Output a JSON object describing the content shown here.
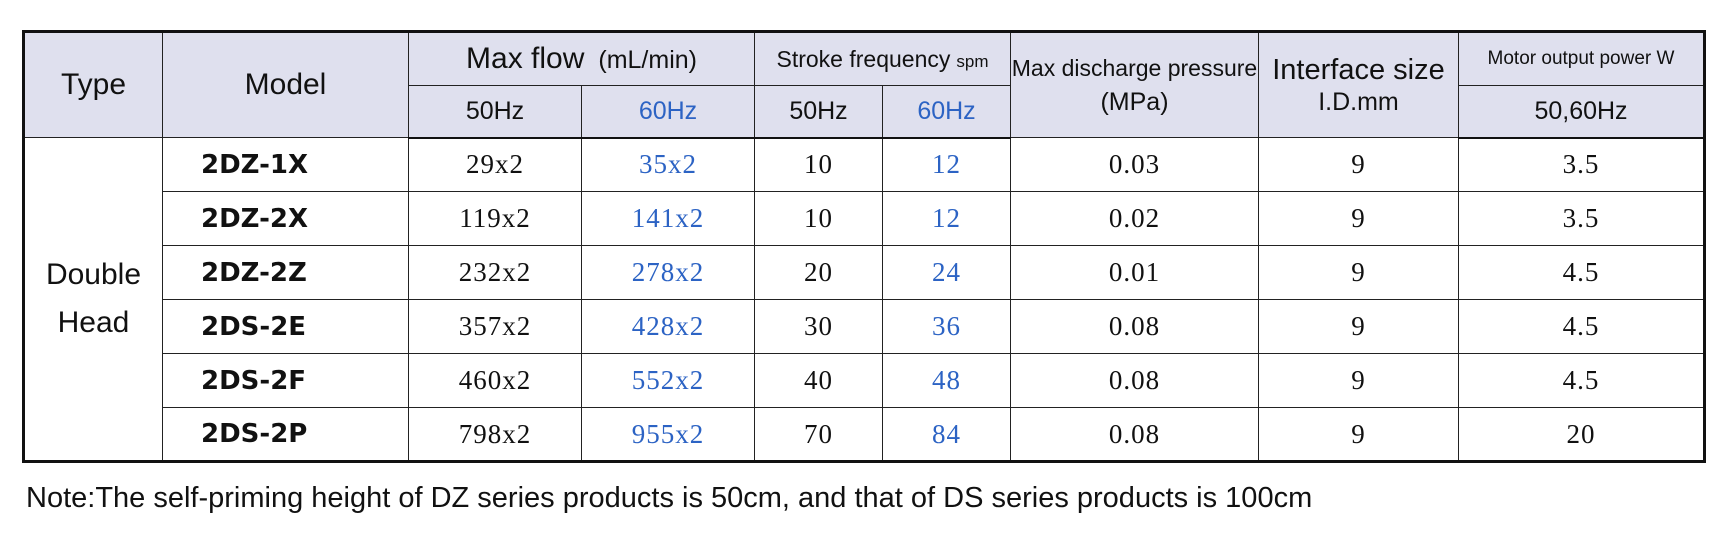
{
  "header": {
    "type": "Type",
    "model": "Model",
    "max_flow": "Max flow",
    "max_flow_unit": "(mL/min)",
    "stroke_frequency": "Stroke frequency",
    "stroke_frequency_unit": "spm",
    "max_discharge_pressure": "Max discharge pressure",
    "max_discharge_pressure_unit": "(MPa)",
    "interface_size": "Interface size",
    "interface_size_unit": "I.D.mm",
    "motor_output_power": "Motor output power  W",
    "flow_50hz": "50Hz",
    "flow_60hz": "60Hz",
    "stroke_50hz": "50Hz",
    "stroke_60hz": "60Hz",
    "motor_hz": "50,60Hz"
  },
  "type_group": {
    "line1": "Double",
    "line2": "Head"
  },
  "rows": [
    {
      "model": "2DZ-1X",
      "flow50": "29x2",
      "flow60": "35x2",
      "stroke50": "10",
      "stroke60": "12",
      "pressure": "0.03",
      "interface": "9",
      "power": "3.5"
    },
    {
      "model": "2DZ-2X",
      "flow50": "119x2",
      "flow60": "141x2",
      "stroke50": "10",
      "stroke60": "12",
      "pressure": "0.02",
      "interface": "9",
      "power": "3.5"
    },
    {
      "model": "2DZ-2Z",
      "flow50": "232x2",
      "flow60": "278x2",
      "stroke50": "20",
      "stroke60": "24",
      "pressure": "0.01",
      "interface": "9",
      "power": "4.5"
    },
    {
      "model": "2DS-2E",
      "flow50": "357x2",
      "flow60": "428x2",
      "stroke50": "30",
      "stroke60": "36",
      "pressure": "0.08",
      "interface": "9",
      "power": "4.5"
    },
    {
      "model": "2DS-2F",
      "flow50": "460x2",
      "flow60": "552x2",
      "stroke50": "40",
      "stroke60": "48",
      "pressure": "0.08",
      "interface": "9",
      "power": "4.5"
    },
    {
      "model": "2DS-2P",
      "flow50": "798x2",
      "flow60": "955x2",
      "stroke50": "70",
      "stroke60": "84",
      "pressure": "0.08",
      "interface": "9",
      "power": "20"
    }
  ],
  "note": "Note:The self-priming height of DZ series products is 50cm, and that of  DS series products is 100cm",
  "colors": {
    "header_bg": "#dfe0ee",
    "accent_60hz": "#2c63c4",
    "text": "#111111"
  }
}
